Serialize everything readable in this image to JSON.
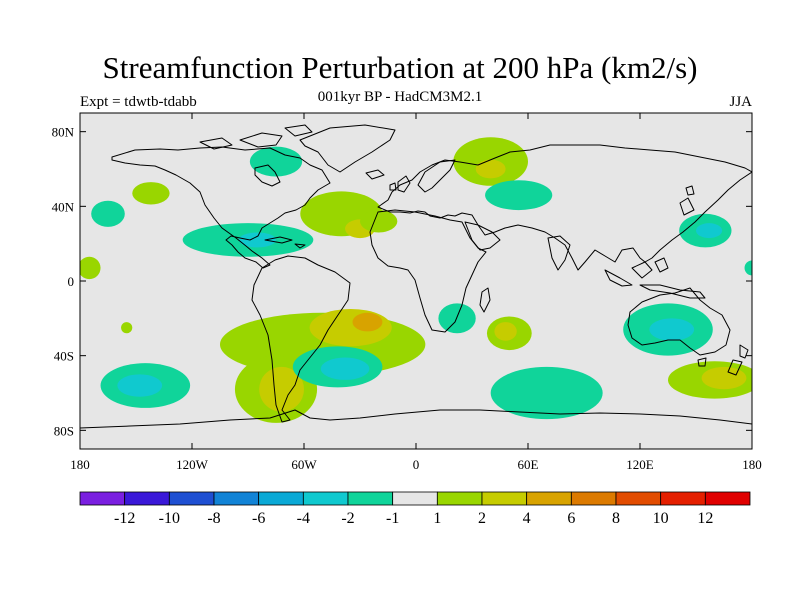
{
  "title": "Streamfunction Perturbation at 200 hPa (km2/s)",
  "subtitle": "001kyr BP - HadCM3M2.1",
  "left_string": "Expt = tdwtb-tdabb",
  "season": "JJA",
  "chart_data": {
    "type": "heatmap",
    "projection": "cylindrical-equidistant",
    "xlim": [
      -180,
      180
    ],
    "ylim": [
      -90,
      90
    ],
    "x_ticks": [
      {
        "value": -180,
        "label": "180"
      },
      {
        "value": -120,
        "label": "120W"
      },
      {
        "value": -60,
        "label": "60W"
      },
      {
        "value": 0,
        "label": "0"
      },
      {
        "value": 60,
        "label": "60E"
      },
      {
        "value": 120,
        "label": "120E"
      },
      {
        "value": 180,
        "label": "180"
      }
    ],
    "y_ticks": [
      {
        "value": 80,
        "label": "80N"
      },
      {
        "value": 40,
        "label": "40N"
      },
      {
        "value": 0,
        "label": "0"
      },
      {
        "value": -40,
        "label": "40S"
      },
      {
        "value": -80,
        "label": "80S"
      }
    ],
    "background_color": "#e6e6e6",
    "colorbar": {
      "labels": [
        "-12",
        "-10",
        "-8",
        "-6",
        "-4",
        "-2",
        "-1",
        "1",
        "2",
        "4",
        "6",
        "8",
        "10",
        "12"
      ],
      "colors": [
        "#7a1fe0",
        "#3a18d8",
        "#1e4fd2",
        "#1183d6",
        "#0aa9d6",
        "#10c9cf",
        "#10d49a",
        "#e6e6e6",
        "#99d600",
        "#c6cc00",
        "#d8a300",
        "#dc7a00",
        "#e24c00",
        "#e41f00",
        "#e00000"
      ]
    },
    "anomalies": [
      {
        "lon": 40,
        "lat": 64,
        "rlon": 20,
        "rlat": 13,
        "value": 1.5
      },
      {
        "lon": 40,
        "lat": 60,
        "rlon": 8,
        "rlat": 5,
        "value": 3
      },
      {
        "lon": 55,
        "lat": 46,
        "rlon": 18,
        "rlat": 8,
        "value": -1.5
      },
      {
        "lon": -40,
        "lat": 36,
        "rlon": 22,
        "rlat": 12,
        "value": 1.5
      },
      {
        "lon": -30,
        "lat": 28,
        "rlon": 8,
        "rlat": 5,
        "value": 3
      },
      {
        "lon": -20,
        "lat": 32,
        "rlon": 10,
        "rlat": 6,
        "value": 1.5
      },
      {
        "lon": -90,
        "lat": 22,
        "rlon": 35,
        "rlat": 9,
        "value": -1.5
      },
      {
        "lon": -85,
        "lat": 22,
        "rlon": 10,
        "rlat": 4,
        "value": -3
      },
      {
        "lon": -75,
        "lat": 64,
        "rlon": 14,
        "rlat": 8,
        "value": -1.5
      },
      {
        "lon": -142,
        "lat": 47,
        "rlon": 10,
        "rlat": 6,
        "value": 1.5
      },
      {
        "lon": -165,
        "lat": 36,
        "rlon": 9,
        "rlat": 7,
        "value": -1.5
      },
      {
        "lon": 155,
        "lat": 27,
        "rlon": 14,
        "rlat": 9,
        "value": -1.5
      },
      {
        "lon": 157,
        "lat": 27,
        "rlon": 7,
        "rlat": 4,
        "value": -3
      },
      {
        "lon": -175,
        "lat": 7,
        "rlon": 6,
        "rlat": 6,
        "value": 1.5
      },
      {
        "lon": 180,
        "lat": 7,
        "rlon": 4,
        "rlat": 4,
        "value": -1.5
      },
      {
        "lon": -50,
        "lat": -34,
        "rlon": 55,
        "rlat": 17,
        "value": 1.5
      },
      {
        "lon": -35,
        "lat": -25,
        "rlon": 22,
        "rlat": 10,
        "value": 3
      },
      {
        "lon": -26,
        "lat": -22,
        "rlon": 8,
        "rlat": 5,
        "value": 5
      },
      {
        "lon": -75,
        "lat": -58,
        "rlon": 22,
        "rlat": 18,
        "value": 1.5
      },
      {
        "lon": -72,
        "lat": -58,
        "rlon": 12,
        "rlat": 12,
        "value": 3
      },
      {
        "lon": -42,
        "lat": -46,
        "rlon": 24,
        "rlat": 11,
        "value": -1.5
      },
      {
        "lon": -38,
        "lat": -47,
        "rlon": 13,
        "rlat": 6,
        "value": -3
      },
      {
        "lon": -145,
        "lat": -56,
        "rlon": 24,
        "rlat": 12,
        "value": -1.5
      },
      {
        "lon": -148,
        "lat": -56,
        "rlon": 12,
        "rlat": 6,
        "value": -3
      },
      {
        "lon": 22,
        "lat": -20,
        "rlon": 10,
        "rlat": 8,
        "value": -1.5
      },
      {
        "lon": 50,
        "lat": -28,
        "rlon": 12,
        "rlat": 9,
        "value": 1.5
      },
      {
        "lon": 48,
        "lat": -27,
        "rlon": 6,
        "rlat": 5,
        "value": 3
      },
      {
        "lon": 70,
        "lat": -60,
        "rlon": 30,
        "rlat": 14,
        "value": -1.5
      },
      {
        "lon": 135,
        "lat": -26,
        "rlon": 24,
        "rlat": 14,
        "value": -1.5
      },
      {
        "lon": 137,
        "lat": -26,
        "rlon": 12,
        "rlat": 6,
        "value": -3
      },
      {
        "lon": 160,
        "lat": -53,
        "rlon": 25,
        "rlat": 10,
        "value": 1.5
      },
      {
        "lon": 165,
        "lat": -52,
        "rlon": 12,
        "rlat": 6,
        "value": 3
      },
      {
        "lon": -155,
        "lat": -25,
        "rlon": 3,
        "rlat": 3,
        "value": 1.5
      }
    ]
  }
}
